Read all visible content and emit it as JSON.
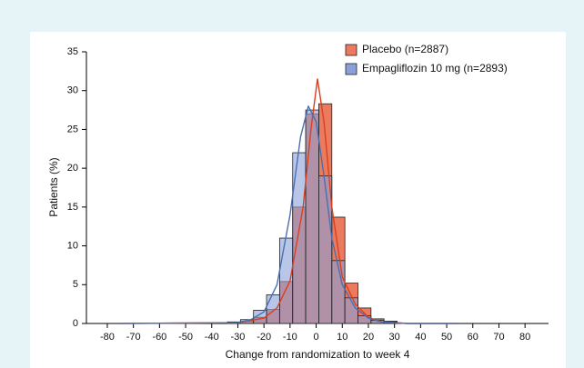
{
  "chart_data": {
    "type": "histogram",
    "xlabel": "Change from randomization to week 4",
    "ylabel": "Patients (%)",
    "bins": [
      -34,
      -29,
      -24,
      -19,
      -14,
      -9,
      -4,
      1,
      6,
      11,
      16,
      21,
      26,
      31
    ],
    "series": [
      {
        "name": "Placebo (n=2887)",
        "color": "#ec7a5e",
        "line_color": "#d9401e",
        "values": [
          0.1,
          0.3,
          0.8,
          1.8,
          5.4,
          15.0,
          27.0,
          28.3,
          13.7,
          5.2,
          2.0,
          0.6,
          0.3
        ],
        "curve": {
          "x": [
            -75,
            -30,
            -20,
            -15,
            -10,
            -5,
            -2,
            0.5,
            3,
            6,
            10,
            15,
            20,
            25,
            35,
            55
          ],
          "values": [
            0,
            0.1,
            0.7,
            2,
            5.5,
            15,
            25,
            31.5,
            26,
            15,
            6,
            2.5,
            0.8,
            0.2,
            0,
            0
          ]
        }
      },
      {
        "name": "Empagliflozin 10 mg (n=2893)",
        "color": "#8aa0d8",
        "line_color": "#4a6fae",
        "values": [
          0.2,
          0.5,
          1.7,
          3.7,
          11.0,
          22.0,
          27.5,
          19.0,
          8.1,
          3.3,
          1.0,
          0.4,
          0.2
        ],
        "curve": {
          "x": [
            -75,
            -30,
            -25,
            -20,
            -15,
            -10,
            -6,
            -3,
            0,
            3,
            6,
            10,
            15,
            20,
            25,
            35,
            55
          ],
          "values": [
            0,
            0.1,
            0.5,
            1.5,
            5,
            14,
            24,
            28,
            26,
            19,
            11,
            5,
            2,
            0.7,
            0.2,
            0,
            0
          ]
        }
      }
    ],
    "xlim": [
      -88,
      89
    ],
    "xticks": [
      -80,
      -70,
      -60,
      -50,
      -40,
      -30,
      -20,
      -10,
      0,
      10,
      20,
      30,
      40,
      50,
      60,
      70,
      80
    ],
    "ylim": [
      0,
      35
    ],
    "yticks": [
      0,
      5,
      10,
      15,
      20,
      25,
      30,
      35
    ],
    "legend": "top-right"
  }
}
